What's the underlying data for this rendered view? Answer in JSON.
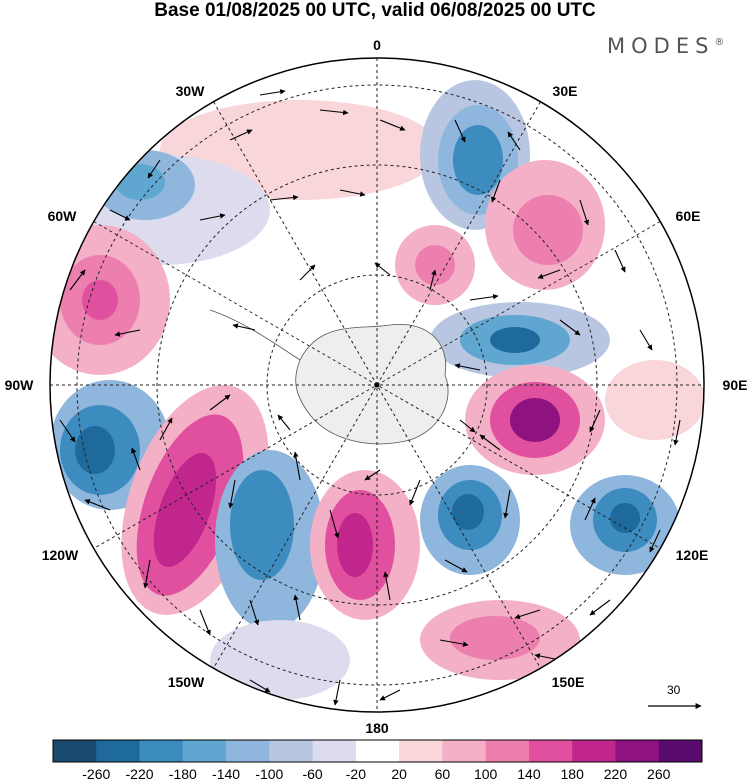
{
  "title": "Base 01/08/2025 00 UTC, valid 06/08/2025 00 UTC",
  "brand": "MODES",
  "brand_mark": "®",
  "longitude_labels": {
    "lon_0": "0",
    "lon_30E": "30E",
    "lon_60E": "60E",
    "lon_90E": "90E",
    "lon_120E": "120E",
    "lon_150E": "150E",
    "lon_180": "180",
    "lon_150W": "150W",
    "lon_120W": "120W",
    "lon_90W": "90W",
    "lon_60W": "60W",
    "lon_30W": "30W"
  },
  "reference_vector_label": "30",
  "colorbar": {
    "labels": [
      "-260",
      "-220",
      "-180",
      "-140",
      "-100",
      "-60",
      "-20",
      "20",
      "60",
      "100",
      "140",
      "180",
      "220",
      "260"
    ],
    "colors": [
      "#1a4a6e",
      "#1f6a9c",
      "#3c8cc0",
      "#5fa6d0",
      "#8fb6dc",
      "#b9c6e2",
      "#dcdcee",
      "#ffffff",
      "#f8d6da",
      "#f4b0c6",
      "#ec7fae",
      "#e0509e",
      "#c0268c",
      "#8e1380",
      "#5a0b70"
    ]
  },
  "chart_data": {
    "type": "map",
    "projection": "south polar stereographic",
    "field": "height anomaly with wind vectors",
    "contour_levels": [
      -260,
      -220,
      -180,
      -140,
      -100,
      -60,
      -20,
      20,
      60,
      100,
      140,
      180,
      220,
      260
    ],
    "reference_vector": 30
  }
}
